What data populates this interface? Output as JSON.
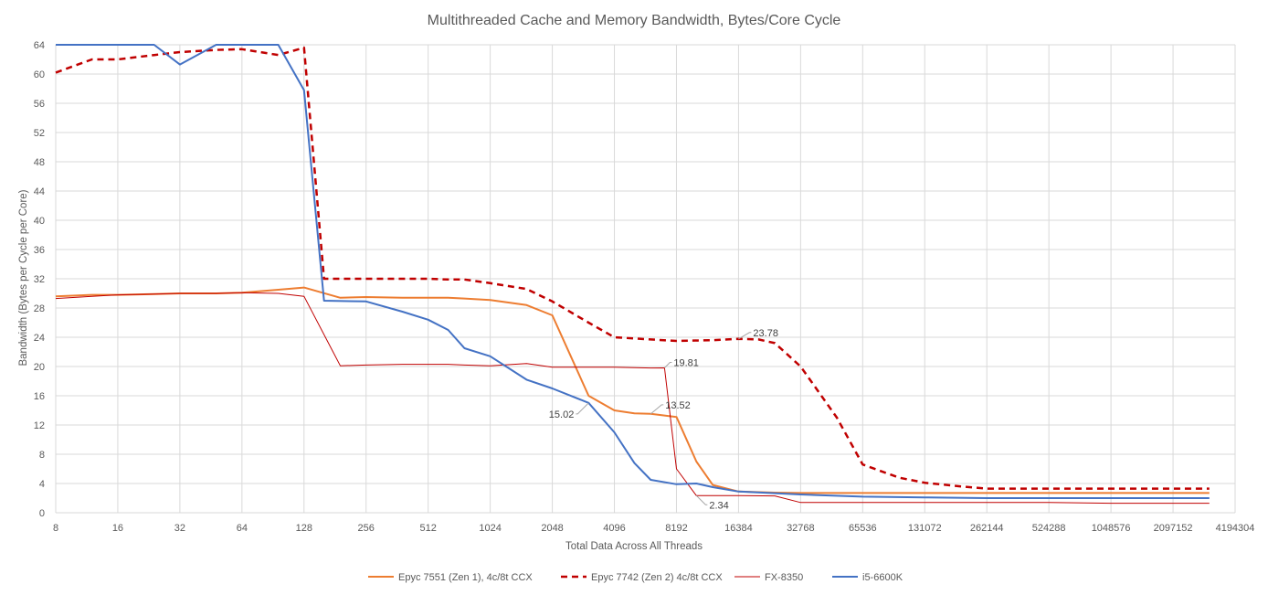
{
  "chart_data": {
    "type": "line",
    "title": "Multithreaded Cache and Memory Bandwidth, Bytes/Core Cycle",
    "xlabel": "Total Data Across All Threads",
    "ylabel": "Bandwidth (Bytes per  Cycle per Core)",
    "x_scale": "log2",
    "xlim": [
      8,
      4194304
    ],
    "ylim": [
      0,
      64
    ],
    "x_ticks": [
      8,
      16,
      32,
      64,
      128,
      256,
      512,
      1024,
      2048,
      4096,
      8192,
      16384,
      32768,
      65536,
      131072,
      262144,
      524288,
      1048576,
      2097152,
      4194304
    ],
    "x_tick_labels": [
      "8",
      "16",
      "32",
      "64",
      "128",
      "256",
      "512",
      "1024",
      "2048",
      "4096",
      "8192",
      "16384",
      "32768",
      "65536",
      "131072",
      "262144",
      "524288",
      "1048576",
      "2097152",
      "4194304"
    ],
    "y_ticks": [
      0,
      4,
      8,
      12,
      16,
      20,
      24,
      28,
      32,
      36,
      40,
      44,
      48,
      52,
      56,
      60,
      64
    ],
    "y_tick_labels": [
      "0",
      "4",
      "8",
      "12",
      "16",
      "20",
      "24",
      "28",
      "32",
      "36",
      "40",
      "44",
      "48",
      "52",
      "56",
      "60",
      "64"
    ],
    "grid": true,
    "legend_position": "bottom",
    "series": [
      {
        "name": "Epyc 7551 (Zen 1), 4c/8t CCX",
        "color": "#ed7d31",
        "dash": "solid",
        "width": 2,
        "x": [
          8,
          12,
          16,
          24,
          32,
          48,
          64,
          96,
          128,
          192,
          256,
          384,
          512,
          640,
          768,
          1024,
          1536,
          2048,
          3072,
          4096,
          5120,
          6144,
          8192,
          10240,
          12288,
          16384,
          24576,
          32768,
          65536,
          131072,
          262144,
          524288,
          1048576,
          2097152,
          3145728
        ],
        "y": [
          29.6,
          29.8,
          29.8,
          29.9,
          30.0,
          30.0,
          30.1,
          30.5,
          30.8,
          29.4,
          29.5,
          29.4,
          29.4,
          29.4,
          29.3,
          29.1,
          28.4,
          27.0,
          16.0,
          14.0,
          13.6,
          13.52,
          13.1,
          7.0,
          3.8,
          2.9,
          2.75,
          2.7,
          2.7,
          2.7,
          2.7,
          2.7,
          2.7,
          2.7,
          2.7
        ]
      },
      {
        "name": "Epyc 7742 (Zen 2) 4c/8t CCX",
        "color": "#c00000",
        "dash": "dashed",
        "width": 2.5,
        "x": [
          8,
          12,
          16,
          24,
          32,
          48,
          64,
          96,
          128,
          160,
          256,
          384,
          512,
          640,
          768,
          1024,
          1536,
          2048,
          3072,
          4096,
          6144,
          8192,
          12288,
          16384,
          20480,
          24576,
          32768,
          49152,
          65536,
          98304,
          131072,
          196608,
          262144,
          524288,
          1048576,
          2097152,
          3145728
        ],
        "y": [
          60.2,
          62.0,
          62.0,
          62.6,
          63.0,
          63.3,
          63.4,
          62.6,
          63.6,
          32.0,
          32.0,
          32.0,
          32.0,
          31.9,
          31.9,
          31.4,
          30.6,
          28.9,
          26.0,
          24.0,
          23.7,
          23.5,
          23.6,
          23.78,
          23.7,
          23.2,
          20.0,
          13.0,
          6.6,
          4.8,
          4.1,
          3.6,
          3.3,
          3.3,
          3.3,
          3.3,
          3.3
        ]
      },
      {
        "name": "FX-8350",
        "color": "#c00000",
        "dash": "solid",
        "width": 1,
        "x": [
          8,
          12,
          16,
          24,
          32,
          48,
          64,
          96,
          128,
          192,
          256,
          384,
          512,
          640,
          768,
          1024,
          1536,
          2048,
          3072,
          4096,
          6144,
          7168,
          8192,
          10240,
          16384,
          24576,
          32768,
          65536,
          131072,
          262144,
          524288,
          1048576,
          2097152,
          3145728
        ],
        "y": [
          29.3,
          29.6,
          29.8,
          29.9,
          30.0,
          30.0,
          30.1,
          30.0,
          29.6,
          20.1,
          20.2,
          20.3,
          20.3,
          20.3,
          20.2,
          20.1,
          20.4,
          19.9,
          19.9,
          19.9,
          19.8,
          19.81,
          6.0,
          2.34,
          2.34,
          2.3,
          1.4,
          1.4,
          1.4,
          1.4,
          1.4,
          1.3,
          1.3,
          1.3
        ]
      },
      {
        "name": "i5-6600K",
        "color": "#4472c4",
        "dash": "solid",
        "width": 2,
        "x": [
          8,
          12,
          16,
          24,
          32,
          48,
          64,
          96,
          128,
          160,
          256,
          384,
          512,
          640,
          768,
          1024,
          1536,
          2048,
          3072,
          4096,
          5120,
          6144,
          8192,
          10240,
          12288,
          16384,
          32768,
          65536,
          131072,
          262144,
          524288,
          1048576,
          2097152,
          3145728
        ],
        "y": [
          64.0,
          64.0,
          64.0,
          64.0,
          61.3,
          64.0,
          64.0,
          64.0,
          57.8,
          29.0,
          28.9,
          27.5,
          26.4,
          25.0,
          22.5,
          21.4,
          18.2,
          17.0,
          15.02,
          11.0,
          6.8,
          4.5,
          3.9,
          4.0,
          3.5,
          2.9,
          2.5,
          2.2,
          2.1,
          2.0,
          2.0,
          2.0,
          2.0,
          2.0
        ]
      }
    ],
    "annotations": [
      {
        "text": "23.78",
        "x": 16384,
        "y": 23.78,
        "series": "Epyc 7742 (Zen 2) 4c/8t CCX"
      },
      {
        "text": "19.81",
        "x": 7168,
        "y": 19.81,
        "series": "FX-8350"
      },
      {
        "text": "13.52",
        "x": 6144,
        "y": 13.52,
        "series": "Epyc 7551 (Zen 1), 4c/8t CCX"
      },
      {
        "text": "15.02",
        "x": 3072,
        "y": 15.02,
        "series": "i5-6600K"
      },
      {
        "text": "2.34",
        "x": 10240,
        "y": 2.34,
        "series": "FX-8350"
      }
    ]
  }
}
